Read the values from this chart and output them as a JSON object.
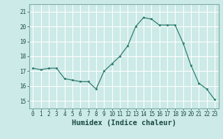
{
  "x": [
    0,
    1,
    2,
    3,
    4,
    5,
    6,
    7,
    8,
    9,
    10,
    11,
    12,
    13,
    14,
    15,
    16,
    17,
    18,
    19,
    20,
    21,
    22,
    23
  ],
  "y": [
    17.2,
    17.1,
    17.2,
    17.2,
    16.5,
    16.4,
    16.3,
    16.3,
    15.8,
    17.0,
    17.5,
    18.0,
    18.7,
    20.0,
    20.6,
    20.5,
    20.1,
    20.1,
    20.1,
    18.9,
    17.4,
    16.2,
    15.8,
    15.1
  ],
  "xlabel": "Humidex (Indice chaleur)",
  "line_color": "#2e7b6e",
  "marker_color": "#2e7b6e",
  "bg_color": "#cceae7",
  "grid_color": "#ffffff",
  "ylim": [
    14.5,
    21.5
  ],
  "xlim": [
    -0.5,
    23.5
  ],
  "yticks": [
    15,
    16,
    17,
    18,
    19,
    20,
    21
  ],
  "xticks": [
    0,
    1,
    2,
    3,
    4,
    5,
    6,
    7,
    8,
    9,
    10,
    11,
    12,
    13,
    14,
    15,
    16,
    17,
    18,
    19,
    20,
    21,
    22,
    23
  ],
  "tick_fontsize": 5.5,
  "xlabel_fontsize": 7.5,
  "spine_color": "#7aaba6"
}
